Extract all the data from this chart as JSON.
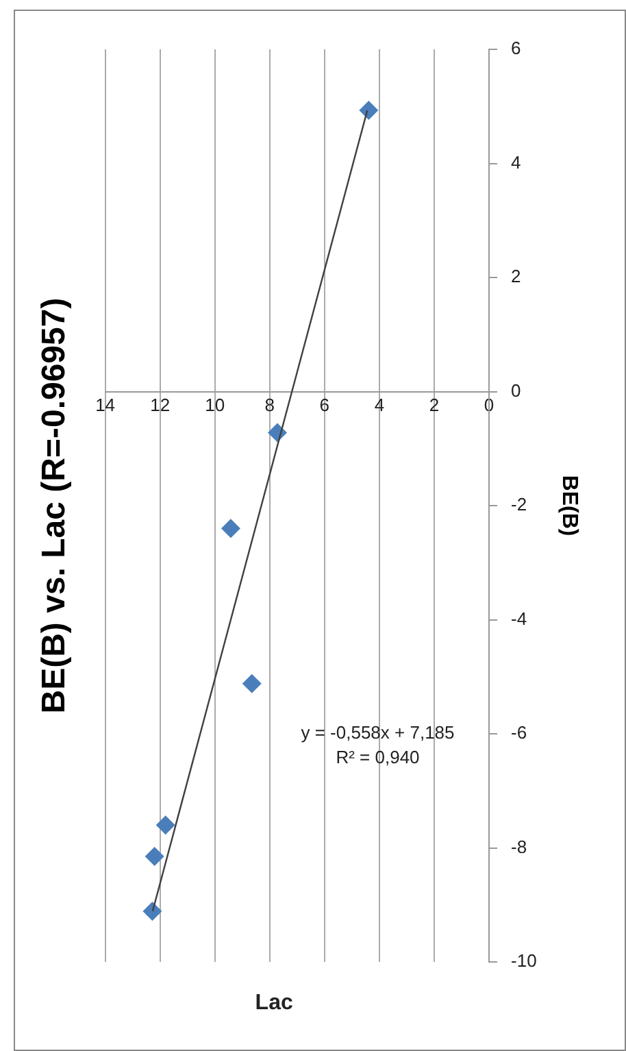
{
  "chart_data": {
    "type": "scatter",
    "title": "BE(B) vs. Lac (R=-0.96957)",
    "xlabel": "Lac",
    "ylabel": "BE(B)",
    "series": [
      {
        "color": "#4a7ebb",
        "marker": "diamond",
        "x": [
          4.39,
          7.72,
          9.42,
          8.65,
          11.8,
          12.2,
          12.28
        ],
        "values": [
          4.93,
          -0.72,
          -2.4,
          -5.12,
          -7.6,
          -8.15,
          -9.11
        ]
      },
      {
        "type": "line",
        "color": "#404040",
        "marker": "none",
        "x": [
          12.27,
          4.44
        ],
        "values": [
          -9.11,
          4.93
        ]
      }
    ],
    "annotations": [
      "y = -0,558x + 7,185",
      "R² = 0,940"
    ],
    "xlim": [
      14,
      0
    ],
    "xticks": [
      14,
      12,
      10,
      8,
      6,
      4,
      2,
      0
    ],
    "ylim": [
      -10,
      6
    ],
    "yticks": [
      -10,
      -8,
      -6,
      -4,
      -2,
      0,
      2,
      4,
      6
    ],
    "grid": "x"
  }
}
